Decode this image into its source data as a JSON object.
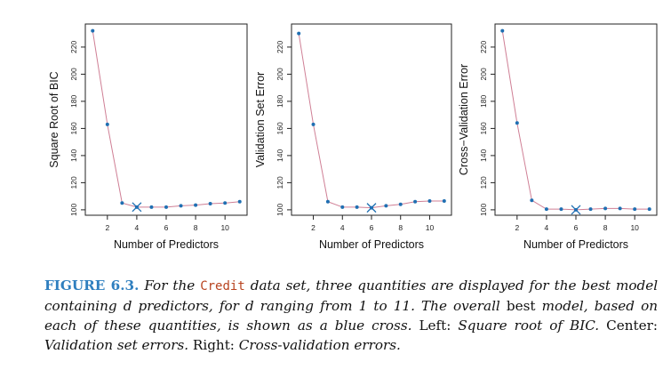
{
  "chart_data": [
    {
      "type": "line",
      "xlabel": "Number of Predictors",
      "ylabel": "Square Root of BIC",
      "xlim": [
        0.5,
        11.5
      ],
      "ylim": [
        96,
        237
      ],
      "xticks": [
        2,
        4,
        6,
        8,
        10
      ],
      "yticks": [
        100,
        120,
        140,
        160,
        180,
        200,
        220
      ],
      "x": [
        1,
        2,
        3,
        4,
        5,
        6,
        7,
        8,
        9,
        10,
        11
      ],
      "values": [
        232,
        163,
        105,
        102,
        102,
        102,
        103,
        103.5,
        104.5,
        105,
        106
      ],
      "best": {
        "x": 4,
        "y": 102
      },
      "line_color": "#cf7f95",
      "point_color": "#1f6fb2"
    },
    {
      "type": "line",
      "xlabel": "Number of Predictors",
      "ylabel": "Validation Set Error",
      "xlim": [
        0.5,
        11.5
      ],
      "ylim": [
        96,
        237
      ],
      "xticks": [
        2,
        4,
        6,
        8,
        10
      ],
      "yticks": [
        100,
        120,
        140,
        160,
        180,
        200,
        220
      ],
      "x": [
        1,
        2,
        3,
        4,
        5,
        6,
        7,
        8,
        9,
        10,
        11
      ],
      "values": [
        230,
        163,
        106,
        102,
        102,
        101.5,
        103,
        104,
        106,
        106.5,
        106.5
      ],
      "best": {
        "x": 6,
        "y": 101.5
      },
      "line_color": "#cf7f95",
      "point_color": "#1f6fb2"
    },
    {
      "type": "line",
      "xlabel": "Number of Predictors",
      "ylabel": "Cross−Validation Error",
      "xlim": [
        0.5,
        11.5
      ],
      "ylim": [
        96,
        237
      ],
      "xticks": [
        2,
        4,
        6,
        8,
        10
      ],
      "yticks": [
        100,
        120,
        140,
        160,
        180,
        200,
        220
      ],
      "x": [
        1,
        2,
        3,
        4,
        5,
        6,
        7,
        8,
        9,
        10,
        11
      ],
      "values": [
        232,
        164,
        107,
        100.5,
        100.5,
        100,
        100.5,
        101,
        101,
        100.5,
        100.5
      ],
      "best": {
        "x": 6,
        "y": 100
      },
      "line_color": "#cf7f95",
      "point_color": "#1f6fb2"
    }
  ],
  "caption": {
    "label": "FIGURE 6.3.",
    "part1": "For the",
    "code": "Credit",
    "part2": "data set, three quantities are displayed for the best model containing d predictors, for d ranging from 1 to 11. The overall",
    "part3": "best",
    "part4": "model, based on each of these quantities, is shown as a blue cross.",
    "part5": "Left:",
    "part6": "Square root of BIC.",
    "part7": "Center:",
    "part8": "Validation set errors.",
    "part9": "Right:",
    "part10": "Cross-validation errors."
  }
}
